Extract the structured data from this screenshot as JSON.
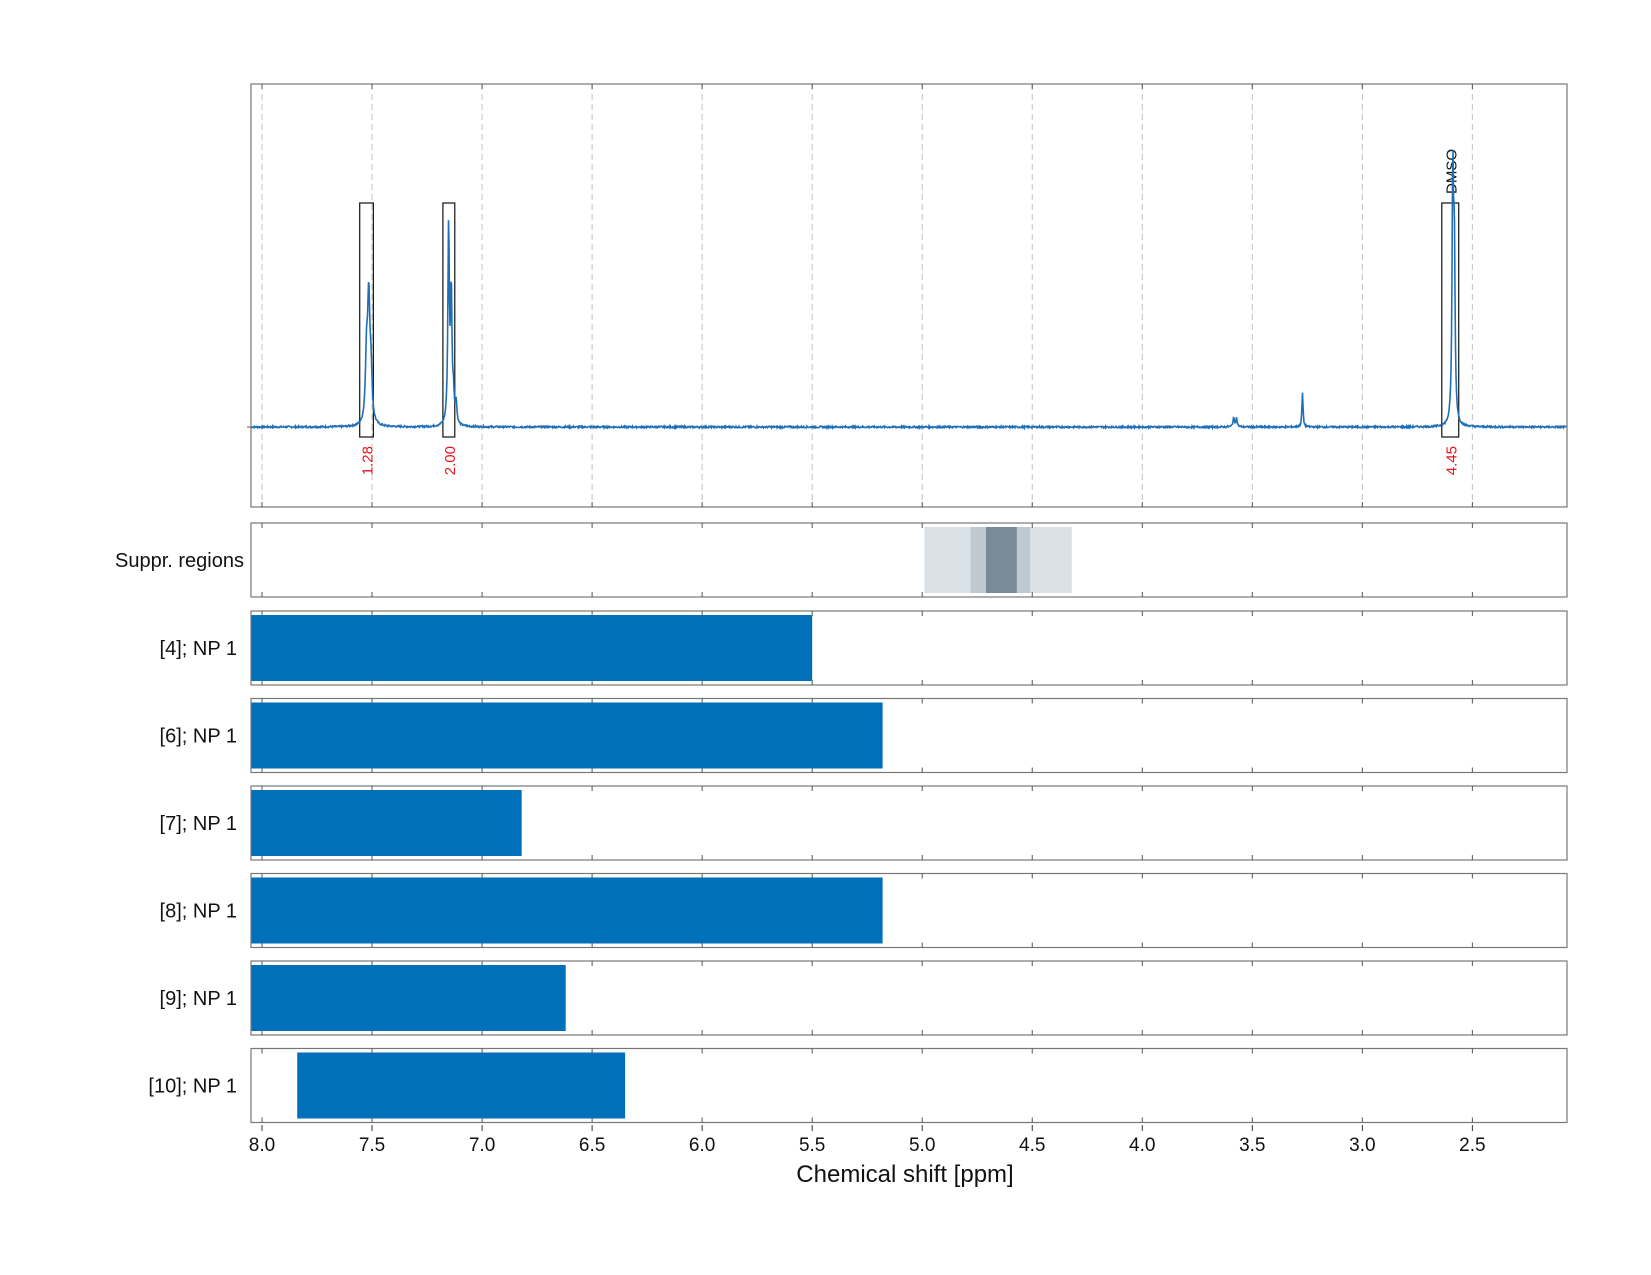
{
  "chart_data": {
    "type": "line",
    "xlabel": "Chemical shift [ppm]",
    "xlim": [
      8.05,
      2.07
    ],
    "x_ticks": [
      "8.0",
      "7.5",
      "7.0",
      "6.5",
      "6.0",
      "5.5",
      "5.0",
      "4.5",
      "4.0",
      "3.5",
      "3.0",
      "2.5"
    ],
    "grid": true,
    "spectrum": {
      "baseline": 0,
      "peaks": [
        {
          "ppm": 7.515,
          "height": 0.55,
          "width": 0.006
        },
        {
          "ppm": 7.525,
          "height": 0.3,
          "width": 0.006
        },
        {
          "ppm": 7.505,
          "height": 0.22,
          "width": 0.006
        },
        {
          "ppm": 7.152,
          "height": 0.92,
          "width": 0.004
        },
        {
          "ppm": 7.14,
          "height": 0.6,
          "width": 0.004
        },
        {
          "ppm": 7.13,
          "height": 0.12,
          "width": 0.004
        },
        {
          "ppm": 7.118,
          "height": 0.1,
          "width": 0.004
        },
        {
          "ppm": 3.585,
          "height": 0.04,
          "width": 0.004
        },
        {
          "ppm": 3.572,
          "height": 0.04,
          "width": 0.004
        },
        {
          "ppm": 3.272,
          "height": 0.16,
          "width": 0.003
        },
        {
          "ppm": 2.589,
          "height": 1.12,
          "width": 0.004
        },
        {
          "ppm": 2.582,
          "height": 0.75,
          "width": 0.004
        }
      ]
    },
    "integrals": [
      {
        "from": 7.556,
        "to": 7.494,
        "label": "1.28"
      },
      {
        "from": 7.178,
        "to": 7.124,
        "label": "2.00"
      },
      {
        "from": 2.639,
        "to": 2.562,
        "label": "4.45",
        "annotation": "DMSO"
      }
    ],
    "suppression_regions": {
      "label": "Suppr. regions",
      "bands": [
        {
          "from": 4.99,
          "to": 4.32,
          "color": "#dae2e8"
        },
        {
          "from": 4.78,
          "to": 4.51,
          "color": "#bec9d1"
        },
        {
          "from": 4.71,
          "to": 4.57,
          "color": "#7a8b97"
        }
      ]
    },
    "tracks": [
      {
        "label": "[4]; NP 1",
        "from": 8.05,
        "to": 5.5
      },
      {
        "label": "[6]; NP 1",
        "from": 8.05,
        "to": 5.18
      },
      {
        "label": "[7]; NP 1",
        "from": 8.05,
        "to": 6.82
      },
      {
        "label": "[8]; NP 1",
        "from": 8.05,
        "to": 5.18
      },
      {
        "label": "[9]; NP 1",
        "from": 8.05,
        "to": 6.62
      },
      {
        "label": "[10]; NP 1",
        "from": 7.84,
        "to": 6.35
      }
    ],
    "colors": {
      "spectrum": "#1f6fb8",
      "track_bar": "#0070bb",
      "integral_label": "#e8141b",
      "frame": "#777777",
      "grid": "#c0c0c0"
    }
  }
}
